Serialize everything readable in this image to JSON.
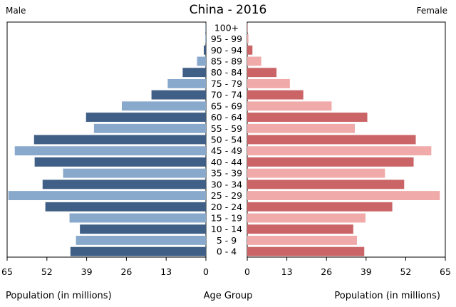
{
  "chart_data": {
    "type": "bar",
    "title": "China - 2016",
    "left_label": "Male",
    "right_label": "Female",
    "xlabel_left": "Population (in millions)",
    "xlabel_center": "Age Group",
    "xlabel_right": "Population (in millions)",
    "xlim": [
      0,
      65
    ],
    "xticks": [
      65,
      52,
      39,
      26,
      13,
      0
    ],
    "xticks_right": [
      0,
      13,
      26,
      39,
      52,
      65
    ],
    "categories": [
      "100+",
      "95 - 99",
      "90 - 94",
      "85 - 89",
      "80 - 84",
      "75 - 79",
      "70 - 74",
      "65 - 69",
      "60 - 64",
      "55 - 59",
      "50 - 54",
      "45 - 49",
      "40 - 44",
      "35 - 39",
      "30 - 34",
      "25 - 29",
      "20 - 24",
      "15 - 19",
      "10 - 14",
      "5 - 9",
      "0 - 4"
    ],
    "series": [
      {
        "name": "Male",
        "values": [
          0.1,
          0.2,
          0.7,
          2.9,
          7.6,
          12.5,
          17.8,
          27.5,
          39.2,
          36.6,
          56.2,
          62.5,
          56.0,
          46.7,
          53.4,
          64.6,
          52.5,
          44.6,
          41.2,
          42.5,
          44.3
        ]
      },
      {
        "name": "Female",
        "values": [
          0.1,
          0.4,
          1.7,
          4.6,
          9.6,
          14.0,
          18.4,
          27.7,
          39.4,
          35.3,
          55.3,
          60.4,
          54.6,
          45.2,
          51.5,
          63.2,
          47.6,
          38.8,
          34.8,
          36.0,
          38.4
        ]
      }
    ],
    "colors": {
      "male_dark": "#3f5f86",
      "male_light": "#88a9cc",
      "female_dark": "#cb6466",
      "female_light": "#f0aaaa"
    },
    "grid": false,
    "legend": "none"
  }
}
